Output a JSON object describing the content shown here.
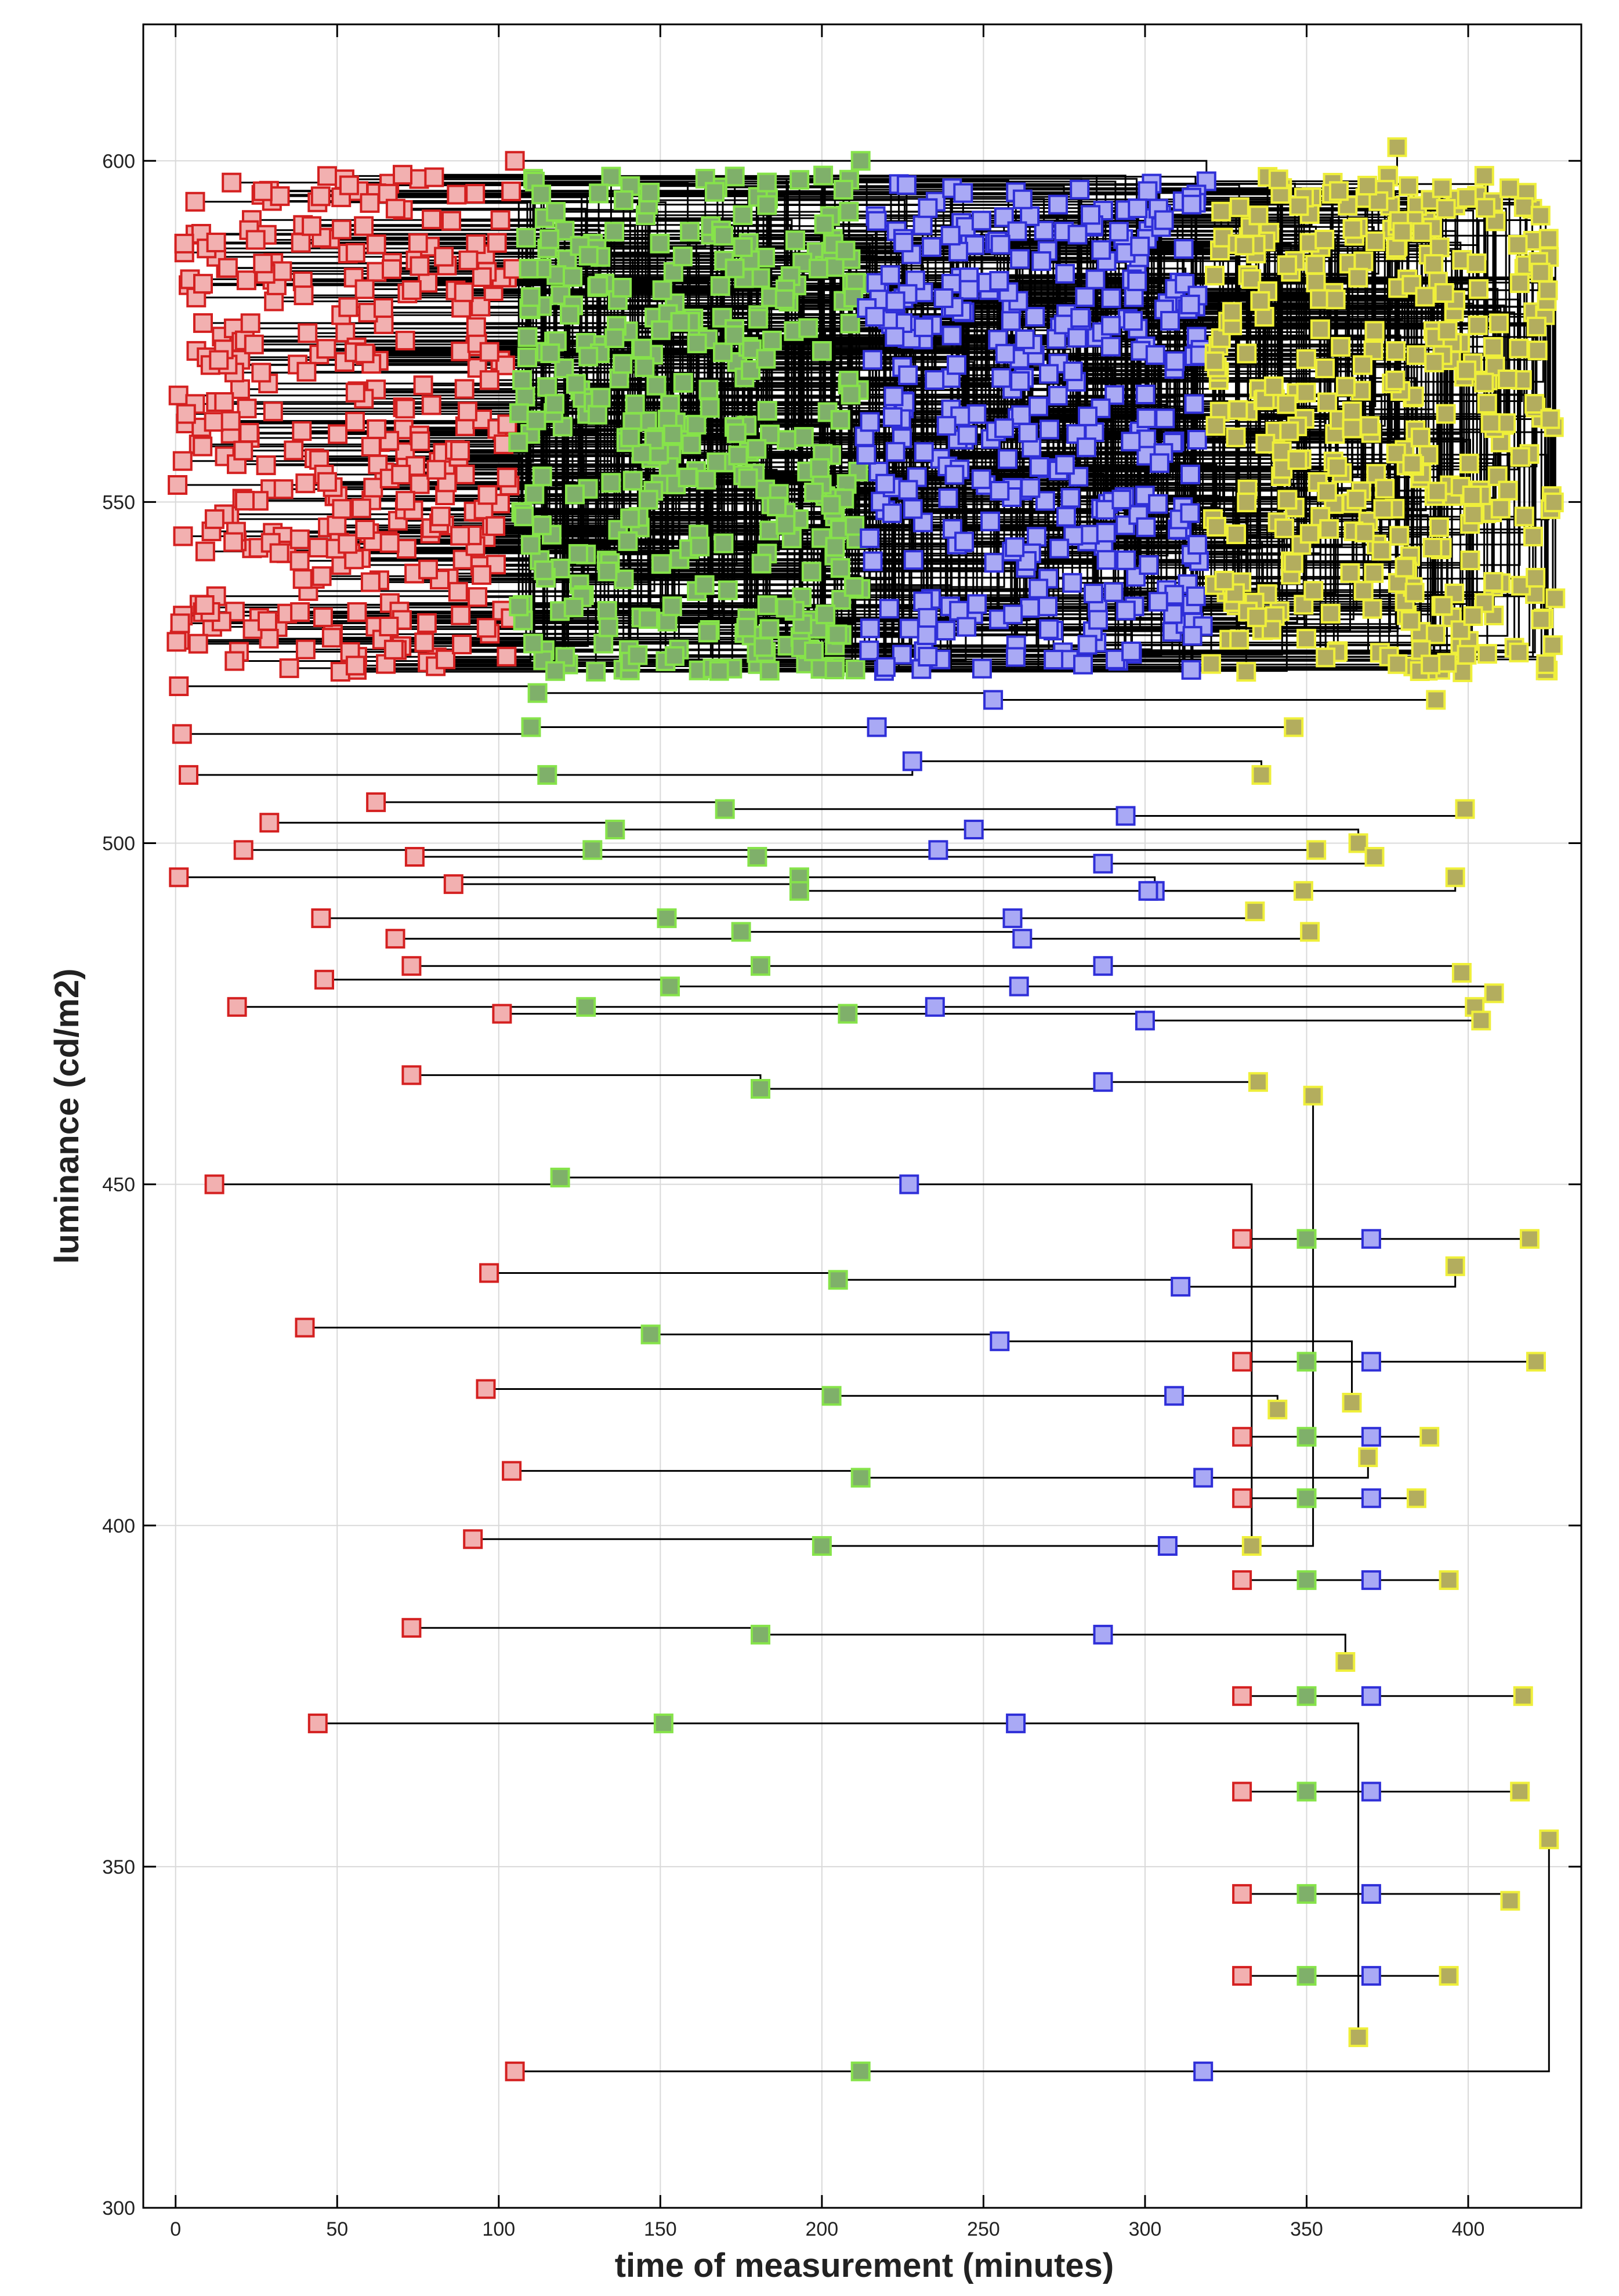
{
  "chart_data": {
    "type": "scatter",
    "xlabel": "time of measurement (minutes)",
    "ylabel": "luminance (cd/m2)",
    "xlim": [
      -10,
      435
    ],
    "ylim": [
      300,
      620
    ],
    "xticks": [
      0,
      50,
      100,
      150,
      200,
      250,
      300,
      350,
      400
    ],
    "yticks": [
      300,
      350,
      400,
      450,
      500,
      550,
      600
    ],
    "grid": true,
    "legend": "none",
    "colors": {
      "red_fill": "#f2b0b0",
      "red_edge": "#d42020",
      "green_fill": "#7fb06a",
      "green_edge": "#86e34a",
      "blue_fill": "#a9a9f5",
      "blue_edge": "#2f2fd8",
      "yellow_fill": "#b3ad5e",
      "yellow_edge": "#efef3a"
    },
    "series_windows": [
      {
        "color": "red",
        "x": [
          0,
          105
        ]
      },
      {
        "color": "green",
        "x": [
          106,
          212
        ]
      },
      {
        "color": "blue",
        "x": [
          213,
          319
        ]
      },
      {
        "color": "yellow",
        "x": [
          320,
          427
        ]
      }
    ],
    "dense_region": {
      "y": [
        525,
        598
      ],
      "samples_per_series": 360
    },
    "traces": [
      {
        "y": [
          600,
          600,
          597,
          602
        ],
        "x": [
          105,
          212,
          319,
          378
        ]
      },
      {
        "y": [
          495,
          495,
          493,
          495
        ],
        "x": [
          1,
          193,
          303,
          396
        ]
      },
      {
        "y": [
          476,
          476,
          476,
          476
        ],
        "x": [
          19,
          127,
          235,
          402
        ]
      },
      {
        "y": [
          466,
          464,
          465,
          465
        ],
        "x": [
          73,
          181,
          287,
          335
        ]
      },
      {
        "y": [
          450,
          451,
          450,
          397
        ],
        "x": [
          12,
          119,
          227,
          333
        ]
      },
      {
        "y": [
          437,
          436,
          435,
          438
        ],
        "x": [
          97,
          205,
          311,
          396
        ]
      },
      {
        "y": [
          429,
          428,
          427,
          418
        ],
        "x": [
          40,
          147,
          255,
          364
        ]
      },
      {
        "y": [
          420,
          419,
          419,
          417
        ],
        "x": [
          96,
          203,
          309,
          341
        ]
      },
      {
        "y": [
          408,
          407,
          407,
          410
        ],
        "x": [
          104,
          212,
          318,
          369
        ]
      },
      {
        "y": [
          398,
          397,
          397,
          463
        ],
        "x": [
          92,
          200,
          307,
          352
        ]
      },
      {
        "y": [
          385,
          384,
          384,
          380
        ],
        "x": [
          73,
          181,
          287,
          362
        ]
      },
      {
        "y": [
          371,
          371,
          371,
          325
        ],
        "x": [
          44,
          151,
          260,
          366
        ]
      },
      {
        "y": [
          320,
          320,
          320,
          354
        ],
        "x": [
          105,
          212,
          318,
          425
        ]
      },
      {
        "y": [
          523,
          522,
          521,
          521
        ],
        "x": [
          1,
          112,
          253,
          390
        ]
      },
      {
        "y": [
          516,
          517,
          517,
          517
        ],
        "x": [
          2,
          110,
          217,
          346
        ]
      },
      {
        "y": [
          510,
          510,
          512,
          510
        ],
        "x": [
          4,
          115,
          228,
          336
        ]
      },
      {
        "y": [
          506,
          505,
          504,
          505
        ],
        "x": [
          62,
          170,
          294,
          399
        ]
      },
      {
        "y": [
          503,
          502,
          502,
          500
        ],
        "x": [
          29,
          136,
          247,
          366
        ]
      },
      {
        "y": [
          499,
          499,
          499,
          499
        ],
        "x": [
          21,
          129,
          236,
          353
        ]
      },
      {
        "y": [
          498,
          498,
          497,
          498
        ],
        "x": [
          74,
          180,
          287,
          371
        ]
      },
      {
        "y": [
          494,
          493,
          493,
          493
        ],
        "x": [
          86,
          193,
          301,
          349
        ]
      },
      {
        "y": [
          489,
          489,
          489,
          490
        ],
        "x": [
          45,
          152,
          259,
          334
        ]
      },
      {
        "y": [
          486,
          487,
          486,
          487
        ],
        "x": [
          68,
          175,
          262,
          351
        ]
      },
      {
        "y": [
          482,
          482,
          482,
          481
        ],
        "x": [
          73,
          181,
          287,
          398
        ]
      },
      {
        "y": [
          480,
          479,
          479,
          478
        ],
        "x": [
          46,
          153,
          261,
          408
        ]
      },
      {
        "y": [
          475,
          475,
          474,
          474
        ],
        "x": [
          101,
          208,
          300,
          404
        ]
      },
      {
        "y": [
          392,
          392,
          392,
          392
        ],
        "x": [
          330,
          350,
          370,
          394
        ]
      },
      {
        "y": [
          346,
          346,
          346,
          345
        ],
        "x": [
          330,
          350,
          370,
          413
        ]
      },
      {
        "y": [
          334,
          334,
          334,
          334
        ],
        "x": [
          330,
          350,
          370,
          394
        ]
      },
      {
        "y": [
          361,
          361,
          361,
          361
        ],
        "x": [
          330,
          350,
          370,
          416
        ]
      },
      {
        "y": [
          375,
          375,
          375,
          375
        ],
        "x": [
          330,
          350,
          370,
          417
        ]
      },
      {
        "y": [
          404,
          404,
          404,
          404
        ],
        "x": [
          330,
          350,
          370,
          384
        ]
      },
      {
        "y": [
          413,
          413,
          413,
          413
        ],
        "x": [
          330,
          350,
          370,
          388
        ]
      },
      {
        "y": [
          424,
          424,
          424,
          424
        ],
        "x": [
          330,
          350,
          370,
          421
        ]
      },
      {
        "y": [
          442,
          442,
          442,
          442
        ],
        "x": [
          330,
          350,
          370,
          419
        ]
      }
    ]
  }
}
